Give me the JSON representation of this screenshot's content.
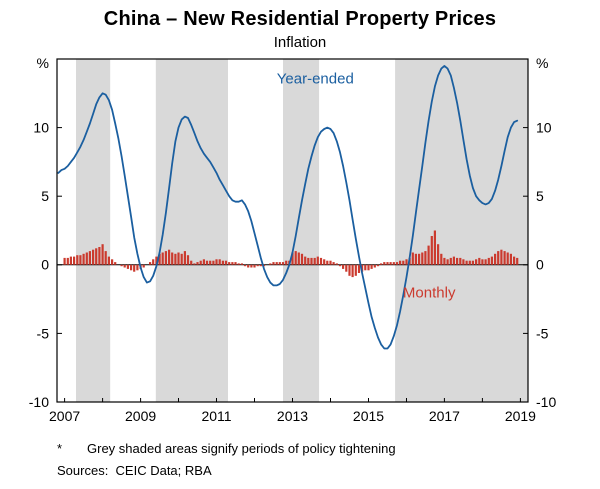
{
  "footnote": {
    "marker": "*",
    "text": "Grey shaded areas signify periods of policy tightening"
  },
  "sources": "Sources:  CEIC Data; RBA",
  "chart_data": {
    "type": "line+bar",
    "title": "China – New Residential Property Prices",
    "subtitle": "Inflation",
    "unit": "%",
    "xlim": [
      2006.8,
      2019.2
    ],
    "ylim": [
      -10,
      15
    ],
    "yticks": [
      -10,
      -5,
      0,
      5,
      10
    ],
    "xticks": [
      2007,
      2009,
      2011,
      2013,
      2015,
      2017,
      2019
    ],
    "grid": false,
    "zero_line": true,
    "band_color": "#d9d9d9",
    "bands_meaning": "periods of policy tightening",
    "shaded_bands": [
      [
        2007.3,
        2008.2
      ],
      [
        2009.4,
        2011.3
      ],
      [
        2012.75,
        2013.7
      ],
      [
        2015.7,
        2019.2
      ]
    ],
    "series": [
      {
        "name": "Year-ended",
        "type": "line",
        "color": "#1b5fa0",
        "label_pos": {
          "x": 2013.6,
          "y": 13.2
        },
        "start": 2006.8333,
        "step_months": 1,
        "values": [
          6.7,
          6.9,
          7.0,
          7.2,
          7.5,
          7.8,
          8.2,
          8.6,
          9.1,
          9.7,
          10.3,
          11.0,
          11.7,
          12.2,
          12.5,
          12.4,
          12.0,
          11.3,
          10.3,
          9.2,
          7.9,
          6.5,
          5.0,
          3.5,
          2.0,
          0.8,
          -0.2,
          -0.9,
          -1.3,
          -1.2,
          -0.8,
          -0.1,
          0.9,
          2.2,
          3.8,
          5.6,
          7.4,
          9.0,
          10.0,
          10.6,
          10.8,
          10.7,
          10.2,
          9.6,
          9.0,
          8.5,
          8.1,
          7.8,
          7.5,
          7.1,
          6.7,
          6.2,
          5.8,
          5.4,
          5.0,
          4.7,
          4.6,
          4.6,
          4.7,
          4.4,
          3.9,
          3.2,
          2.3,
          1.4,
          0.5,
          -0.3,
          -0.9,
          -1.3,
          -1.5,
          -1.5,
          -1.4,
          -1.1,
          -0.6,
          0.0,
          0.9,
          2.1,
          3.4,
          4.7,
          5.9,
          7.0,
          7.9,
          8.7,
          9.3,
          9.7,
          9.9,
          10.0,
          9.9,
          9.6,
          9.0,
          8.2,
          7.2,
          6.0,
          4.7,
          3.3,
          1.9,
          0.6,
          -0.6,
          -1.7,
          -2.8,
          -3.8,
          -4.6,
          -5.3,
          -5.8,
          -6.1,
          -6.1,
          -5.8,
          -5.2,
          -4.4,
          -3.4,
          -2.2,
          -0.9,
          0.5,
          2.1,
          3.8,
          5.5,
          7.2,
          8.9,
          10.5,
          11.9,
          13.0,
          13.8,
          14.3,
          14.5,
          14.3,
          13.8,
          12.9,
          11.8,
          10.5,
          9.1,
          7.7,
          6.5,
          5.6,
          5.0,
          4.7,
          4.5,
          4.4,
          4.5,
          4.8,
          5.4,
          6.2,
          7.2,
          8.3,
          9.3,
          10.0,
          10.4,
          10.5
        ]
      },
      {
        "name": "Monthly",
        "type": "bar",
        "color": "#cb3a2e",
        "label_pos": {
          "x": 2016.6,
          "y": -2.4
        },
        "start": 2007.0,
        "step_months": 1,
        "values": [
          0.5,
          0.5,
          0.6,
          0.6,
          0.7,
          0.7,
          0.8,
          0.9,
          1.0,
          1.1,
          1.2,
          1.3,
          1.5,
          1.0,
          0.6,
          0.4,
          0.2,
          0.0,
          -0.1,
          -0.2,
          -0.3,
          -0.4,
          -0.5,
          -0.4,
          -0.3,
          -0.2,
          0.0,
          0.2,
          0.4,
          0.6,
          0.8,
          0.9,
          1.0,
          1.1,
          0.9,
          0.8,
          0.9,
          0.8,
          1.0,
          0.7,
          0.3,
          0.1,
          0.2,
          0.3,
          0.4,
          0.3,
          0.3,
          0.3,
          0.4,
          0.4,
          0.3,
          0.3,
          0.2,
          0.2,
          0.2,
          0.1,
          0.1,
          -0.1,
          -0.2,
          -0.2,
          -0.2,
          -0.1,
          -0.1,
          -0.1,
          0.0,
          0.1,
          0.2,
          0.2,
          0.2,
          0.2,
          0.3,
          0.3,
          0.9,
          1.0,
          0.9,
          0.8,
          0.6,
          0.5,
          0.5,
          0.5,
          0.6,
          0.5,
          0.4,
          0.3,
          0.3,
          0.2,
          0.1,
          -0.1,
          -0.3,
          -0.5,
          -0.8,
          -0.9,
          -0.8,
          -0.6,
          -0.5,
          -0.4,
          -0.4,
          -0.3,
          -0.2,
          -0.1,
          0.1,
          0.2,
          0.2,
          0.2,
          0.2,
          0.2,
          0.3,
          0.3,
          0.4,
          0.5,
          0.9,
          0.8,
          0.8,
          0.9,
          1.0,
          1.4,
          2.1,
          2.5,
          1.5,
          0.8,
          0.5,
          0.4,
          0.5,
          0.6,
          0.5,
          0.5,
          0.4,
          0.3,
          0.3,
          0.3,
          0.4,
          0.5,
          0.4,
          0.4,
          0.5,
          0.6,
          0.8,
          1.0,
          1.1,
          1.0,
          0.9,
          0.8,
          0.6,
          0.5
        ]
      }
    ]
  }
}
